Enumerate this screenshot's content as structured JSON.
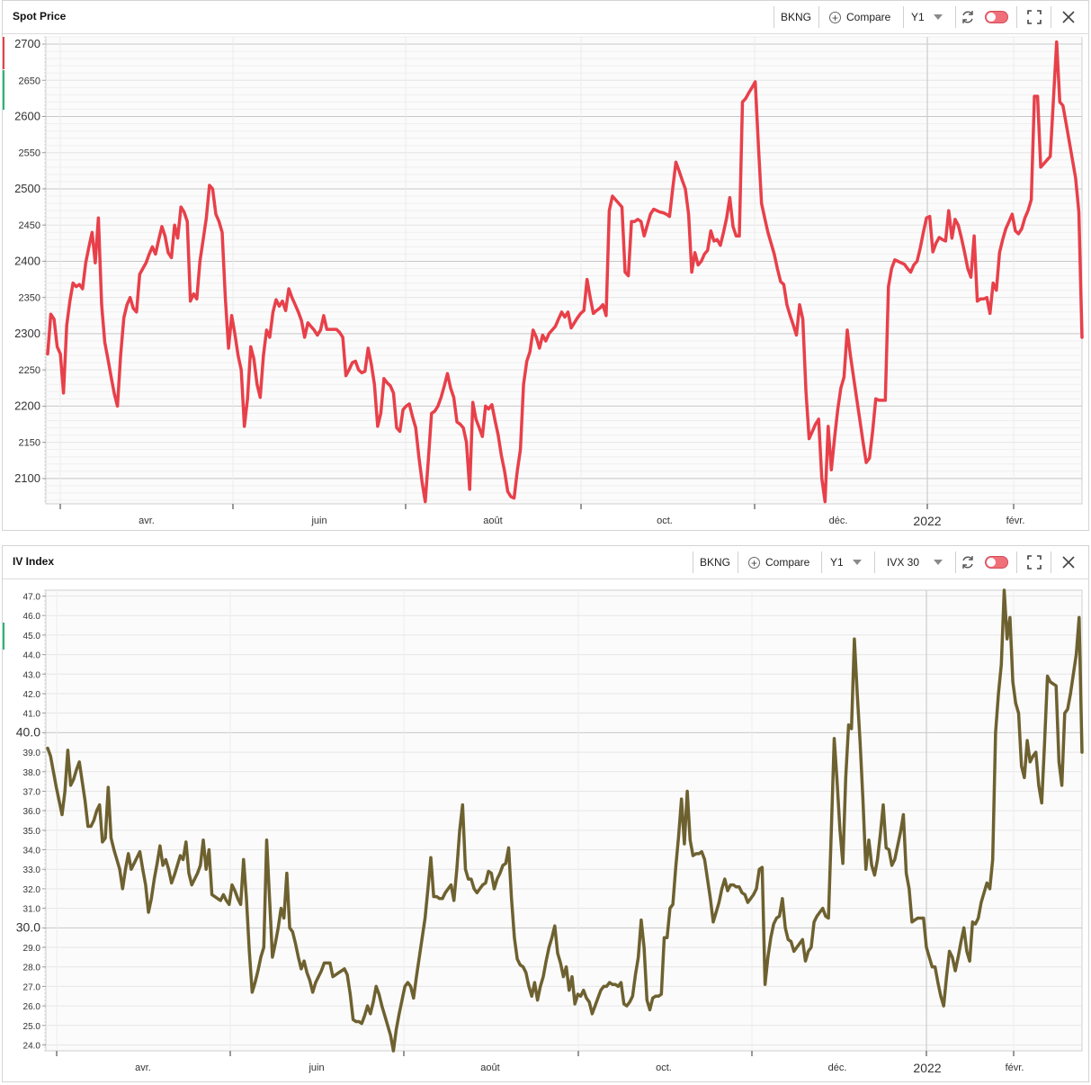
{
  "panels": {
    "spot": {
      "title": "Spot Price",
      "ticker": "BKNG",
      "compare_label": "Compare",
      "period": "Y1"
    },
    "iv": {
      "title": "IV Index",
      "ticker": "BKNG",
      "compare_label": "Compare",
      "period": "Y1",
      "measure": "IVX 30"
    }
  },
  "colors": {
    "spot_line": "#e8404a",
    "iv_line": "#6e6130",
    "grid": "#e6e6e6",
    "toggle": "#f0707a"
  },
  "icons": [
    "plus-circle-icon",
    "chevron-down-icon",
    "refresh-icon",
    "toggle-switch",
    "expand-icon",
    "close-icon"
  ],
  "chart_data": [
    {
      "type": "line",
      "title": "Spot Price",
      "x_labels": [
        "avr.",
        "juin",
        "août",
        "oct.",
        "déc.",
        "2022",
        "févr."
      ],
      "ylim": [
        2065,
        2710
      ],
      "yticks": [
        2100,
        2150,
        2200,
        2250,
        2300,
        2350,
        2400,
        2450,
        2500,
        2550,
        2600,
        2650,
        2700
      ],
      "grid": true,
      "series": [
        {
          "values": [
            2272,
            2327,
            2320,
            2282,
            2272,
            2218,
            2312,
            2345,
            2370,
            2365,
            2368,
            2362,
            2398,
            2420,
            2440,
            2398,
            2460,
            2340,
            2288,
            2265,
            2240,
            2217,
            2200,
            2270,
            2322,
            2340,
            2350,
            2335,
            2330,
            2382,
            2390,
            2398,
            2410,
            2420,
            2410,
            2430,
            2448,
            2435,
            2412,
            2405,
            2450,
            2432,
            2475,
            2468,
            2455,
            2345,
            2355,
            2348,
            2400,
            2430,
            2460,
            2505,
            2500,
            2465,
            2455,
            2440,
            2350,
            2280,
            2325,
            2300,
            2270,
            2250,
            2172,
            2210,
            2282,
            2265,
            2230,
            2212,
            2270,
            2305,
            2295,
            2330,
            2347,
            2338,
            2345,
            2332,
            2362,
            2350,
            2340,
            2330,
            2318,
            2295,
            2315,
            2310,
            2305,
            2298,
            2305,
            2325,
            2306,
            2306,
            2306,
            2306,
            2302,
            2295,
            2242,
            2250,
            2260,
            2262,
            2250,
            2246,
            2248,
            2280,
            2258,
            2230,
            2172,
            2190,
            2238,
            2232,
            2228,
            2218,
            2170,
            2165,
            2195,
            2200,
            2203,
            2185,
            2170,
            2130,
            2095,
            2068,
            2127,
            2190,
            2193,
            2200,
            2212,
            2228,
            2245,
            2225,
            2212,
            2178,
            2175,
            2170,
            2150,
            2085,
            2205,
            2182,
            2170,
            2158,
            2200,
            2196,
            2202,
            2180,
            2160,
            2132,
            2110,
            2082,
            2075,
            2073,
            2110,
            2140,
            2230,
            2262,
            2275,
            2305,
            2295,
            2280,
            2298,
            2290,
            2300,
            2305,
            2310,
            2320,
            2330,
            2323,
            2330,
            2308,
            2315,
            2322,
            2328,
            2332,
            2375,
            2350,
            2328,
            2332,
            2335,
            2340,
            2325,
            2470,
            2490,
            2485,
            2480,
            2475,
            2385,
            2380,
            2455,
            2455,
            2458,
            2455,
            2435,
            2450,
            2465,
            2472,
            2470,
            2468,
            2467,
            2465,
            2462,
            2500,
            2537,
            2525,
            2512,
            2500,
            2465,
            2385,
            2412,
            2395,
            2400,
            2410,
            2415,
            2442,
            2428,
            2430,
            2422,
            2440,
            2460,
            2488,
            2448,
            2435,
            2435,
            2620,
            2625,
            2633,
            2640,
            2648,
            2560,
            2480,
            2460,
            2440,
            2425,
            2410,
            2390,
            2372,
            2368,
            2340,
            2325,
            2312,
            2298,
            2340,
            2320,
            2220,
            2155,
            2165,
            2175,
            2182,
            2100,
            2068,
            2172,
            2112,
            2155,
            2195,
            2225,
            2240,
            2305,
            2270,
            2240,
            2210,
            2180,
            2150,
            2122,
            2128,
            2165,
            2210,
            2208,
            2208,
            2208,
            2365,
            2390,
            2402,
            2400,
            2398,
            2396,
            2390,
            2385,
            2395,
            2400,
            2418,
            2440,
            2460,
            2462,
            2413,
            2425,
            2433,
            2430,
            2428,
            2470,
            2432,
            2458,
            2450,
            2432,
            2412,
            2390,
            2378,
            2435,
            2345,
            2348,
            2348,
            2350,
            2328,
            2370,
            2360,
            2412,
            2430,
            2445,
            2455,
            2465,
            2442,
            2438,
            2445,
            2460,
            2470,
            2485,
            2628,
            2628,
            2530,
            2535,
            2540,
            2545,
            2625,
            2703,
            2620,
            2615,
            2590,
            2565,
            2540,
            2515,
            2468,
            2295
          ]
        }
      ]
    },
    {
      "type": "line",
      "title": "IV Index",
      "x_labels": [
        "avr.",
        "juin",
        "août",
        "oct.",
        "déc.",
        "2022",
        "févr."
      ],
      "ylim": [
        23.7,
        47.3
      ],
      "yticks": [
        24.0,
        25.0,
        26.0,
        27.0,
        28.0,
        29.0,
        30.0,
        31.0,
        32.0,
        33.0,
        34.0,
        35.0,
        36.0,
        37.0,
        38.0,
        39.0,
        40.0,
        41.0,
        42.0,
        43.0,
        44.0,
        45.0,
        46.0,
        47.0
      ],
      "major_yticks": [
        30.0,
        40.0
      ],
      "grid": true,
      "series": [
        {
          "values": [
            39.2,
            38.8,
            38.0,
            37.2,
            36.5,
            35.8,
            37.0,
            39.1,
            37.3,
            37.6,
            38.1,
            38.5,
            37.5,
            36.5,
            35.2,
            35.2,
            35.5,
            36.0,
            36.3,
            34.4,
            34.6,
            37.2,
            34.6,
            34.0,
            33.5,
            33.0,
            32.0,
            33.0,
            33.8,
            33.0,
            33.3,
            33.6,
            33.9,
            33.0,
            32.2,
            30.8,
            31.5,
            32.5,
            33.3,
            34.2,
            33.2,
            33.5,
            33.0,
            32.3,
            32.7,
            33.2,
            33.7,
            33.5,
            34.4,
            32.8,
            32.2,
            32.5,
            32.8,
            33.2,
            34.5,
            33.0,
            34.0,
            31.7,
            31.6,
            31.5,
            31.4,
            31.7,
            31.4,
            31.2,
            32.2,
            31.9,
            31.5,
            31.2,
            33.5,
            31.5,
            28.8,
            26.7,
            27.2,
            27.8,
            28.5,
            29.0,
            34.5,
            31.5,
            28.5,
            29.2,
            30.0,
            31.0,
            30.5,
            32.8,
            30.0,
            29.8,
            29.2,
            28.5,
            27.9,
            28.3,
            27.7,
            27.3,
            26.7,
            27.2,
            27.5,
            27.8,
            28.2,
            28.2,
            28.2,
            27.5,
            27.6,
            27.7,
            27.8,
            27.9,
            27.6,
            26.6,
            25.3,
            25.2,
            25.2,
            25.1,
            25.5,
            26.0,
            25.6,
            26.2,
            27.0,
            26.6,
            26.0,
            25.5,
            25.0,
            24.5,
            23.7,
            24.8,
            25.6,
            26.3,
            27.0,
            27.2,
            27.0,
            26.4,
            27.5,
            28.5,
            29.5,
            30.5,
            32.0,
            33.6,
            31.6,
            31.6,
            31.5,
            31.5,
            31.8,
            32.0,
            32.2,
            31.4,
            33.0,
            35.0,
            36.3,
            33.0,
            32.5,
            32.5,
            32.0,
            31.8,
            32.0,
            32.2,
            32.3,
            32.9,
            32.8,
            32.0,
            32.5,
            32.8,
            33.2,
            33.3,
            34.1,
            31.5,
            29.5,
            28.4,
            28.1,
            28.0,
            27.7,
            27.0,
            26.5,
            27.2,
            26.3,
            27.0,
            27.5,
            28.3,
            29.0,
            29.5,
            30.1,
            28.7,
            28.2,
            27.5,
            28.0,
            26.8,
            27.5,
            26.1,
            26.6,
            26.5,
            26.8,
            26.4,
            26.2,
            25.6,
            26.0,
            26.4,
            26.8,
            27.0,
            27.0,
            27.2,
            27.1,
            27.1,
            27.0,
            27.2,
            26.1,
            26.0,
            26.2,
            26.5,
            27.6,
            28.5,
            30.4,
            29.0,
            26.3,
            25.8,
            26.4,
            26.5,
            26.5,
            26.6,
            29.5,
            29.5,
            31.0,
            31.2,
            33.1,
            34.7,
            36.6,
            34.3,
            37.0,
            34.5,
            33.7,
            33.8,
            33.8,
            33.9,
            33.5,
            32.5,
            31.5,
            30.3,
            30.8,
            31.3,
            32.0,
            32.5,
            31.9,
            32.2,
            32.2,
            32.1,
            32.1,
            31.8,
            31.7,
            31.3,
            31.5,
            31.7,
            32.0,
            33.0,
            33.1,
            27.1,
            28.5,
            29.5,
            30.2,
            30.5,
            30.6,
            31.5,
            30.0,
            29.4,
            29.3,
            28.8,
            29.0,
            29.2,
            29.4,
            28.3,
            28.8,
            29.0,
            30.3,
            30.6,
            30.8,
            31.0,
            30.6,
            30.5,
            35.0,
            39.7,
            37.5,
            35.0,
            33.3,
            37.7,
            40.4,
            40.2,
            44.8,
            42.0,
            39.5,
            36.5,
            33.0,
            34.5,
            33.2,
            32.7,
            33.5,
            34.8,
            36.3,
            34.1,
            34.0,
            33.2,
            33.5,
            34.2,
            34.9,
            35.8,
            32.8,
            32.0,
            30.3,
            30.4,
            30.5,
            30.5,
            30.5,
            29.0,
            28.5,
            28.0,
            28.0,
            27.2,
            26.5,
            26.0,
            27.5,
            28.8,
            28.5,
            27.8,
            28.5,
            29.3,
            30.0,
            28.8,
            28.3,
            30.3,
            30.2,
            30.5,
            31.3,
            31.8,
            32.3,
            32.0,
            33.5,
            40.0,
            42.0,
            43.5,
            47.3,
            44.8,
            45.9,
            42.6,
            41.5,
            41.0,
            38.3,
            37.7,
            39.6,
            38.5,
            38.8,
            39.0,
            37.3,
            36.4,
            39.5,
            42.9,
            42.6,
            42.5,
            42.4,
            38.5,
            37.3,
            41.0,
            41.2,
            42.0,
            43.0,
            44.0,
            45.9,
            39.0
          ]
        }
      ]
    }
  ]
}
